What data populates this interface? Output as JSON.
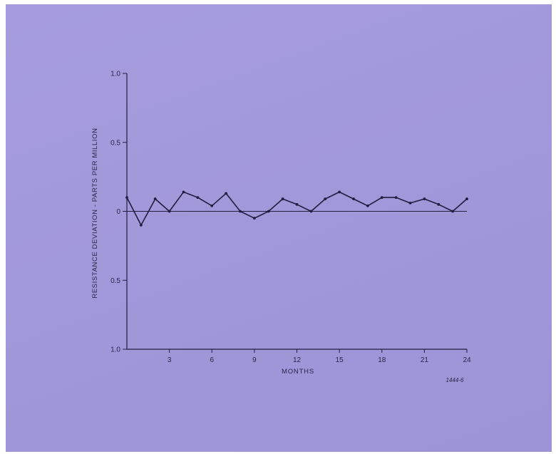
{
  "chart_data": {
    "type": "line",
    "title": "",
    "xlabel": "MONTHS",
    "ylabel": "RESISTANCE DEVIATION - PARTS PER MILLION",
    "xlim": [
      0,
      24
    ],
    "ylim": [
      -1.0,
      1.0
    ],
    "x_ticks": [
      3,
      6,
      9,
      12,
      15,
      18,
      21,
      24
    ],
    "x_tick_labels": [
      "3",
      "6",
      "9",
      "12",
      "15",
      "18",
      "21",
      "24"
    ],
    "y_ticks": [
      1.0,
      0.5,
      0,
      -0.5,
      -1.0
    ],
    "y_tick_labels": [
      "1.0",
      "0.5",
      "0",
      "0.5",
      "1.0"
    ],
    "reference_line": 0,
    "grid": false,
    "series": [
      {
        "x": [
          0,
          1,
          2,
          3,
          4,
          5,
          6,
          7,
          8,
          9,
          10,
          11,
          12,
          13,
          14,
          15,
          16,
          17,
          18,
          19,
          20,
          21,
          22,
          23,
          24
        ],
        "values": [
          0.1,
          -0.1,
          0.09,
          0.0,
          0.14,
          0.1,
          0.04,
          0.13,
          0.0,
          -0.05,
          0.0,
          0.09,
          0.05,
          0.0,
          0.09,
          0.14,
          0.09,
          0.04,
          0.1,
          0.1,
          0.06,
          0.09,
          0.05,
          0.0,
          0.09
        ]
      }
    ],
    "figure_id": "1444-6"
  }
}
